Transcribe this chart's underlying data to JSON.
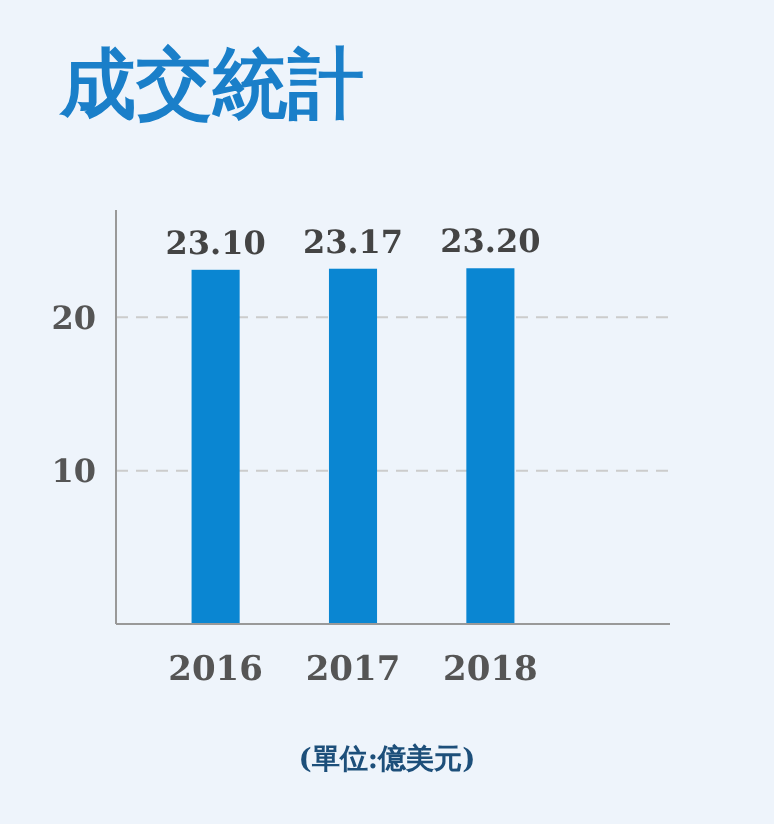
{
  "chart_data": {
    "type": "bar",
    "title": "成交統計",
    "categories": [
      "2016",
      "2017",
      "2018"
    ],
    "values": [
      23.1,
      23.17,
      23.2
    ],
    "value_labels": [
      "23.10",
      "23.17",
      "23.20"
    ],
    "color": "#0a86d2",
    "ylim": [
      0,
      27
    ],
    "yticks": [
      10,
      20
    ],
    "grid": "y",
    "annotations": [
      "(單位:億美元)"
    ]
  }
}
